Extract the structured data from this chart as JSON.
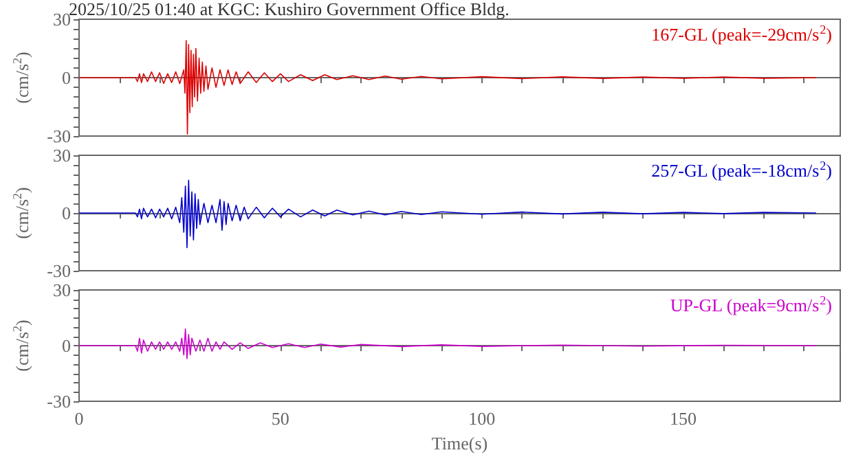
{
  "chart_data": [
    {
      "type": "line",
      "title": "2025/10/25 01:40 at KGC: Kushiro Government Office Bldg.",
      "ylabel": "(cm/s$^{2}$)",
      "annotations": [
        "167-GL (peak=-29cm/s$^{2}$)"
      ],
      "tick_labels": "y",
      "xlim": [
        0,
        189
      ],
      "ylim": [
        -30,
        30
      ],
      "xticks": [
        0,
        {
          "value": 10,
          "label": null
        },
        {
          "value": 20,
          "label": null
        },
        {
          "value": 30,
          "label": null
        },
        {
          "value": 40,
          "label": null
        },
        {
          "value": 50,
          "label": null
        },
        {
          "value": 60,
          "label": null
        },
        {
          "value": 70,
          "label": null
        },
        {
          "value": 80,
          "label": null
        },
        {
          "value": 90,
          "label": null
        },
        {
          "value": 100,
          "label": null
        },
        {
          "value": 110,
          "label": null
        },
        {
          "value": 120,
          "label": null
        },
        {
          "value": 130,
          "label": null
        },
        {
          "value": 140,
          "label": null
        },
        {
          "value": 150,
          "label": null
        },
        {
          "value": 160,
          "label": null
        },
        {
          "value": 170,
          "label": null
        },
        {
          "value": 180,
          "label": null
        }
      ],
      "yticks": [
        -30,
        {
          "value": -25,
          "label": null
        },
        {
          "value": -20,
          "label": null
        },
        {
          "value": -15,
          "label": null
        },
        {
          "value": -10,
          "label": null
        },
        {
          "value": -5,
          "label": null
        },
        0,
        {
          "value": 5,
          "label": null
        },
        {
          "value": 10,
          "label": null
        },
        {
          "value": 15,
          "label": null
        },
        {
          "value": 20,
          "label": null
        },
        {
          "value": 25,
          "label": null
        },
        30
      ],
      "series": [
        {
          "color": "#dd0000",
          "x": [
            0,
            14,
            14.5,
            15,
            15.5,
            16,
            17,
            18,
            19,
            20,
            21,
            22,
            23,
            24,
            25,
            26,
            26.3,
            26.6,
            26.9,
            27.2,
            27.5,
            27.8,
            28.1,
            28.4,
            28.7,
            29,
            29.4,
            29.8,
            30.2,
            30.6,
            31,
            31.5,
            32,
            33,
            34,
            35,
            36,
            37,
            38,
            39,
            40,
            42,
            44,
            46,
            48,
            50,
            52,
            55,
            58,
            61,
            64,
            68,
            72,
            76,
            80,
            85,
            90,
            100,
            110,
            120,
            130,
            140,
            150,
            160,
            170,
            183
          ],
          "values": [
            0,
            0,
            -2,
            2,
            -2.5,
            2,
            -2,
            3,
            -2,
            2.5,
            -3,
            2,
            -2.5,
            3,
            -3,
            4,
            -8,
            19,
            -29,
            17,
            -18,
            14,
            -15,
            12,
            -10,
            15,
            -12,
            10,
            -8,
            8,
            -7,
            6,
            -6,
            5,
            -5,
            4,
            -4,
            4,
            -3.5,
            3,
            -3,
            3,
            -2.5,
            2.5,
            -2,
            2,
            -2,
            1.5,
            -1.5,
            1.5,
            -1,
            1,
            -1,
            0.8,
            -0.8,
            0.6,
            -0.6,
            0.5,
            -0.5,
            0.4,
            -0.4,
            0.3,
            -0.3,
            0.3,
            -0.3,
            0
          ]
        }
      ]
    },
    {
      "type": "line",
      "ylabel": "(cm/s$^{2}$)",
      "annotations": [
        "257-GL (peak=-18cm/s$^{2}$)"
      ],
      "tick_labels": "y",
      "xlim": [
        0,
        189
      ],
      "ylim": [
        -30,
        30
      ],
      "xticks": [
        0,
        {
          "value": 10,
          "label": null
        },
        {
          "value": 20,
          "label": null
        },
        {
          "value": 30,
          "label": null
        },
        {
          "value": 40,
          "label": null
        },
        {
          "value": 50,
          "label": null
        },
        {
          "value": 60,
          "label": null
        },
        {
          "value": 70,
          "label": null
        },
        {
          "value": 80,
          "label": null
        },
        {
          "value": 90,
          "label": null
        },
        {
          "value": 100,
          "label": null
        },
        {
          "value": 110,
          "label": null
        },
        {
          "value": 120,
          "label": null
        },
        {
          "value": 130,
          "label": null
        },
        {
          "value": 140,
          "label": null
        },
        {
          "value": 150,
          "label": null
        },
        {
          "value": 160,
          "label": null
        },
        {
          "value": 170,
          "label": null
        },
        {
          "value": 180,
          "label": null
        }
      ],
      "yticks": [
        -30,
        {
          "value": -25,
          "label": null
        },
        {
          "value": -20,
          "label": null
        },
        {
          "value": -15,
          "label": null
        },
        {
          "value": -10,
          "label": null
        },
        {
          "value": -5,
          "label": null
        },
        0,
        {
          "value": 5,
          "label": null
        },
        {
          "value": 10,
          "label": null
        },
        {
          "value": 15,
          "label": null
        },
        {
          "value": 20,
          "label": null
        },
        {
          "value": 25,
          "label": null
        },
        30
      ],
      "series": [
        {
          "color": "#0000cc",
          "x": [
            0,
            14,
            14.5,
            15,
            15.5,
            16,
            17,
            18,
            19,
            20,
            21,
            22,
            23,
            24,
            25,
            25.5,
            26,
            26.4,
            26.8,
            27.2,
            27.6,
            28,
            28.4,
            28.8,
            29.2,
            29.6,
            30,
            31,
            32,
            33,
            34,
            35,
            35.5,
            36,
            36.5,
            37,
            38,
            39,
            40,
            41,
            42,
            44,
            46,
            48,
            50,
            52,
            55,
            58,
            61,
            64,
            68,
            72,
            76,
            80,
            85,
            90,
            100,
            110,
            120,
            130,
            140,
            150,
            160,
            170,
            183
          ],
          "values": [
            0,
            0,
            -2,
            2,
            -3,
            2.5,
            -2,
            2,
            -2.5,
            2,
            -2,
            2.5,
            -3,
            3,
            -5,
            8,
            -10,
            14,
            -18,
            17,
            -12,
            11,
            -14,
            10,
            -8,
            7,
            -6,
            5,
            -5,
            4,
            -5,
            7,
            -9,
            6,
            -6,
            5,
            -4,
            4,
            -4,
            3,
            -3,
            3,
            -2.5,
            2.5,
            -2,
            2,
            -2,
            1.5,
            -1.5,
            1.5,
            -1,
            1,
            -1,
            0.8,
            -0.8,
            0.6,
            -0.6,
            0.5,
            -0.5,
            0.4,
            -0.4,
            0.3,
            -0.3,
            0.3,
            0
          ]
        }
      ]
    },
    {
      "type": "line",
      "ylabel": "(cm/s$^{2}$)",
      "xlabel": "Time(s)",
      "annotations": [
        "UP-GL (peak=9cm/s$^{2}$)"
      ],
      "xlim": [
        0,
        189
      ],
      "ylim": [
        -30,
        30
      ],
      "xticks": [
        0,
        {
          "value": 10,
          "label": null
        },
        {
          "value": 20,
          "label": null
        },
        {
          "value": 30,
          "label": null
        },
        {
          "value": 40,
          "label": null
        },
        50,
        {
          "value": 60,
          "label": null
        },
        {
          "value": 70,
          "label": null
        },
        {
          "value": 80,
          "label": null
        },
        {
          "value": 90,
          "label": null
        },
        100,
        {
          "value": 110,
          "label": null
        },
        {
          "value": 120,
          "label": null
        },
        {
          "value": 130,
          "label": null
        },
        {
          "value": 140,
          "label": null
        },
        150,
        {
          "value": 160,
          "label": null
        },
        {
          "value": 170,
          "label": null
        },
        {
          "value": 180,
          "label": null
        }
      ],
      "yticks": [
        -30,
        {
          "value": -25,
          "label": null
        },
        {
          "value": -20,
          "label": null
        },
        {
          "value": -15,
          "label": null
        },
        {
          "value": -10,
          "label": null
        },
        {
          "value": -5,
          "label": null
        },
        0,
        {
          "value": 5,
          "label": null
        },
        {
          "value": 10,
          "label": null
        },
        {
          "value": 15,
          "label": null
        },
        {
          "value": 20,
          "label": null
        },
        {
          "value": 25,
          "label": null
        },
        30
      ],
      "series": [
        {
          "color": "#cc00cc",
          "x": [
            0,
            14,
            14.5,
            15,
            15.5,
            16,
            17,
            18,
            19,
            20,
            21,
            22,
            23,
            24,
            25,
            25.5,
            26,
            26.4,
            26.8,
            27.2,
            27.6,
            28,
            29,
            30,
            31,
            32,
            33,
            34,
            35,
            36,
            38,
            40,
            42,
            45,
            48,
            52,
            56,
            60,
            65,
            70,
            80,
            90,
            100,
            120,
            140,
            160,
            183
          ],
          "values": [
            0,
            0,
            -3,
            4,
            -4,
            3,
            -3,
            2,
            -2,
            2,
            -2,
            2,
            -2,
            2,
            -3,
            4,
            -5,
            9,
            -7,
            6,
            -5,
            4,
            -3,
            3,
            -3,
            4,
            -3,
            2,
            -2,
            2,
            -2,
            1.5,
            -1.5,
            1.5,
            -1,
            1,
            -1,
            0.8,
            -0.8,
            0.6,
            -0.5,
            0.4,
            -0.4,
            0.3,
            -0.3,
            0.2,
            0
          ]
        }
      ]
    }
  ]
}
